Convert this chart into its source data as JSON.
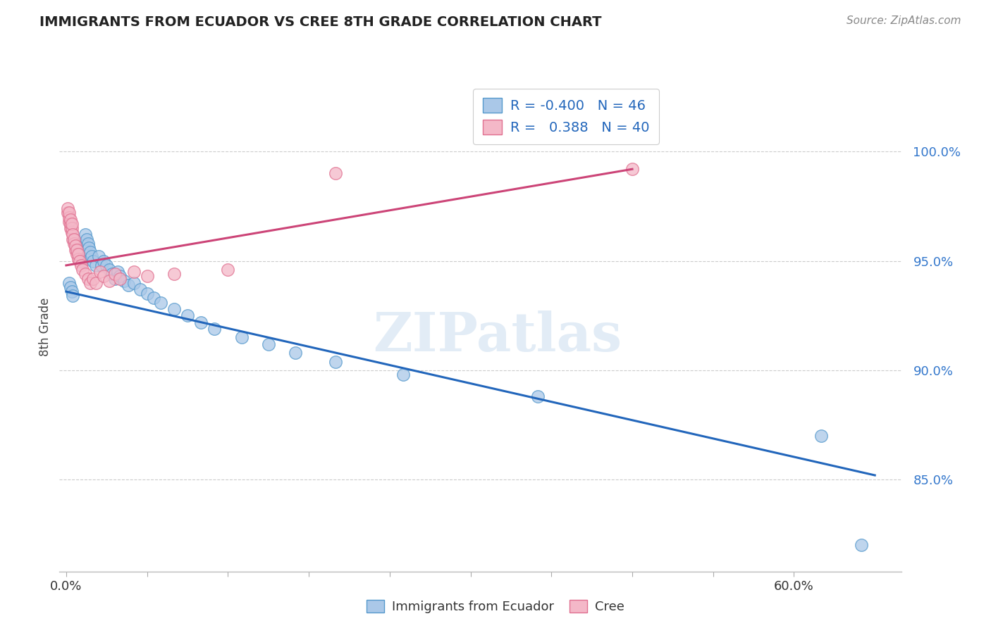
{
  "title": "IMMIGRANTS FROM ECUADOR VS CREE 8TH GRADE CORRELATION CHART",
  "source": "Source: ZipAtlas.com",
  "ylabel": "8th Grade",
  "y_ticks": [
    0.85,
    0.9,
    0.95,
    1.0
  ],
  "y_tick_labels": [
    "85.0%",
    "90.0%",
    "95.0%",
    "100.0%"
  ],
  "x_tick_labels": [
    "0.0%",
    "",
    "",
    "",
    "",
    "",
    "",
    "",
    "",
    "60.0%"
  ],
  "xlim": [
    -0.005,
    0.62
  ],
  "ylim": [
    0.808,
    1.032
  ],
  "blue_R": "-0.400",
  "blue_N": "46",
  "pink_R": "0.388",
  "pink_N": "40",
  "blue_color": "#aac8e8",
  "blue_edge_color": "#5599cc",
  "blue_line_color": "#2266bb",
  "pink_color": "#f4b8c8",
  "pink_edge_color": "#e07090",
  "pink_line_color": "#cc4477",
  "watermark": "ZIPatlas",
  "blue_scatter_x": [
    0.002,
    0.003,
    0.004,
    0.005,
    0.006,
    0.007,
    0.008,
    0.009,
    0.01,
    0.012,
    0.014,
    0.015,
    0.016,
    0.017,
    0.018,
    0.019,
    0.02,
    0.022,
    0.024,
    0.026,
    0.028,
    0.03,
    0.032,
    0.034,
    0.036,
    0.038,
    0.04,
    0.043,
    0.046,
    0.05,
    0.055,
    0.06,
    0.065,
    0.07,
    0.08,
    0.09,
    0.1,
    0.11,
    0.13,
    0.15,
    0.17,
    0.2,
    0.25,
    0.35,
    0.56,
    0.59
  ],
  "blue_scatter_y": [
    0.94,
    0.938,
    0.936,
    0.934,
    0.96,
    0.958,
    0.956,
    0.954,
    0.952,
    0.95,
    0.962,
    0.96,
    0.958,
    0.956,
    0.954,
    0.952,
    0.95,
    0.948,
    0.952,
    0.948,
    0.95,
    0.948,
    0.946,
    0.944,
    0.942,
    0.945,
    0.943,
    0.941,
    0.939,
    0.94,
    0.937,
    0.935,
    0.933,
    0.931,
    0.928,
    0.925,
    0.922,
    0.919,
    0.915,
    0.912,
    0.908,
    0.904,
    0.898,
    0.888,
    0.87,
    0.82
  ],
  "pink_scatter_x": [
    0.001,
    0.001,
    0.002,
    0.002,
    0.002,
    0.003,
    0.003,
    0.003,
    0.004,
    0.004,
    0.004,
    0.005,
    0.005,
    0.006,
    0.006,
    0.007,
    0.007,
    0.008,
    0.008,
    0.009,
    0.009,
    0.01,
    0.011,
    0.012,
    0.014,
    0.016,
    0.018,
    0.02,
    0.022,
    0.025,
    0.028,
    0.032,
    0.036,
    0.04,
    0.05,
    0.06,
    0.08,
    0.12,
    0.2,
    0.42
  ],
  "pink_scatter_y": [
    0.972,
    0.974,
    0.968,
    0.97,
    0.972,
    0.965,
    0.967,
    0.969,
    0.963,
    0.965,
    0.967,
    0.96,
    0.962,
    0.958,
    0.96,
    0.955,
    0.957,
    0.953,
    0.955,
    0.951,
    0.953,
    0.95,
    0.948,
    0.946,
    0.944,
    0.942,
    0.94,
    0.942,
    0.94,
    0.945,
    0.943,
    0.941,
    0.944,
    0.942,
    0.945,
    0.943,
    0.944,
    0.946,
    0.99,
    0.992
  ],
  "blue_line_x": [
    0.0,
    0.6
  ],
  "blue_line_y": [
    0.936,
    0.852
  ],
  "pink_line_x": [
    0.0,
    0.42
  ],
  "pink_line_y": [
    0.948,
    0.992
  ]
}
